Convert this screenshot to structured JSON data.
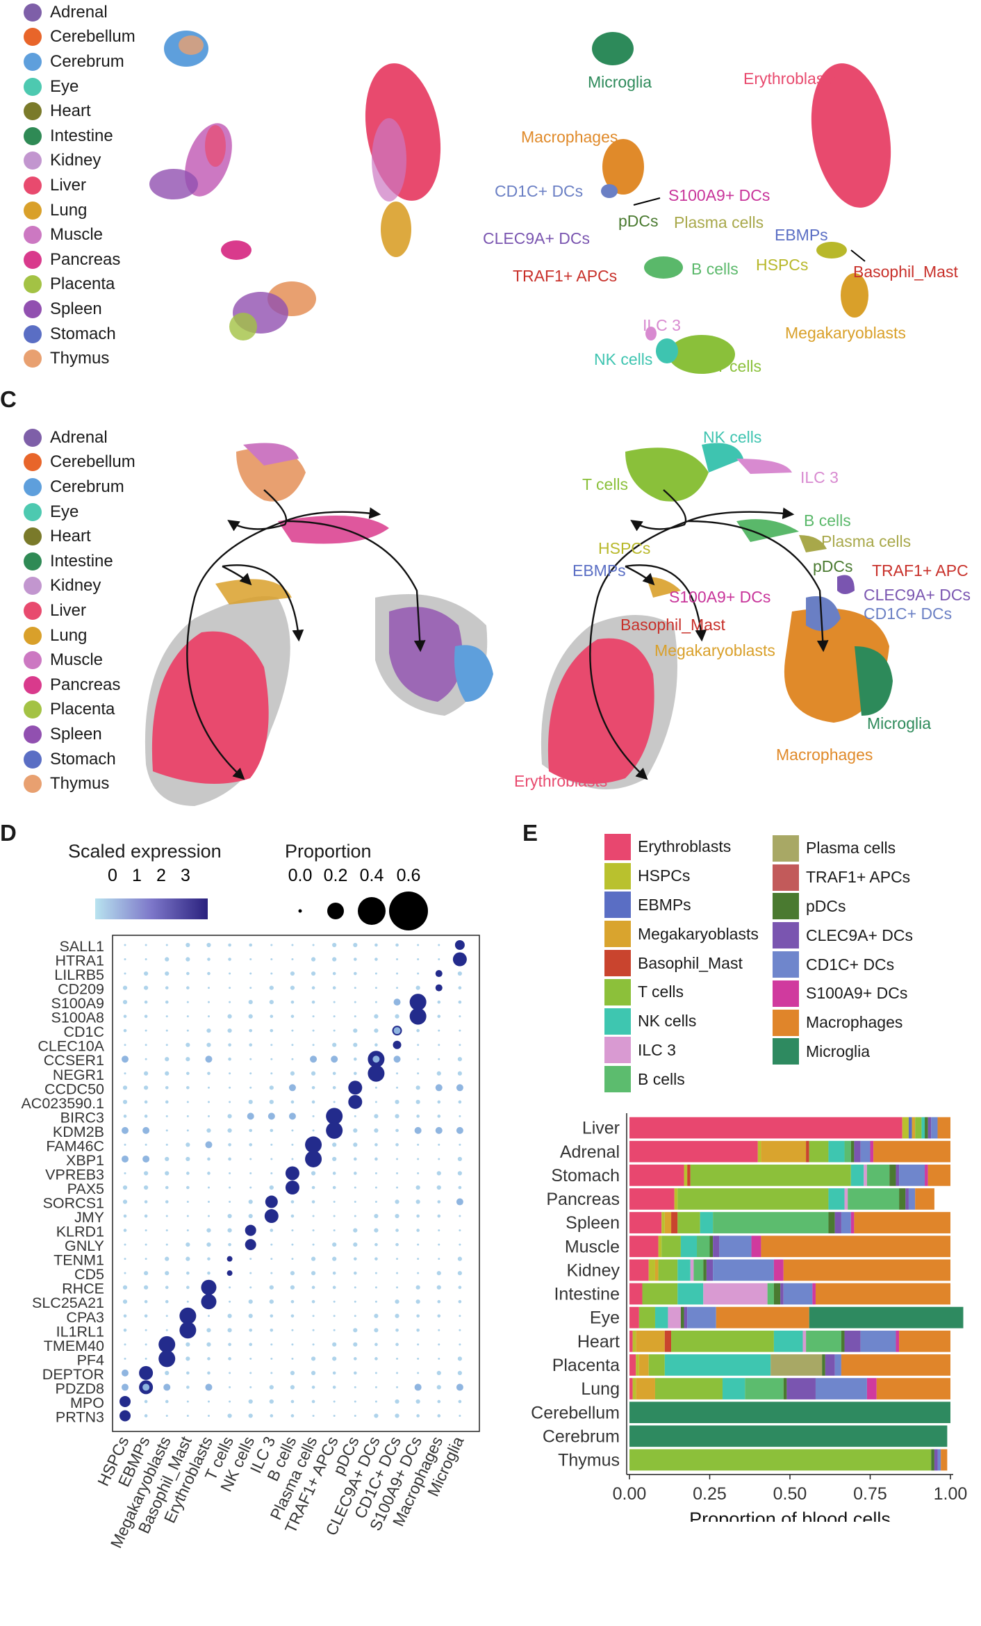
{
  "tissue_legend": [
    {
      "name": "Adrenal",
      "color": "#7e5fa8"
    },
    {
      "name": "Cerebellum",
      "color": "#e8652a"
    },
    {
      "name": "Cerebrum",
      "color": "#5e9fdc"
    },
    {
      "name": "Eye",
      "color": "#4dc9b0"
    },
    {
      "name": "Heart",
      "color": "#7a7a2a"
    },
    {
      "name": "Intestine",
      "color": "#2f8a55"
    },
    {
      "name": "Kidney",
      "color": "#c296cf"
    },
    {
      "name": "Liver",
      "color": "#e84a6e"
    },
    {
      "name": "Lung",
      "color": "#d9a02a"
    },
    {
      "name": "Muscle",
      "color": "#cc78c2"
    },
    {
      "name": "Pancreas",
      "color": "#d93a8c"
    },
    {
      "name": "Placenta",
      "color": "#a3c244"
    },
    {
      "name": "Spleen",
      "color": "#9150b0"
    },
    {
      "name": "Stomach",
      "color": "#5a6ec4"
    },
    {
      "name": "Thymus",
      "color": "#e8a070"
    }
  ],
  "panel_b_celltype_labels": [
    {
      "text": "Microglia",
      "color": "#2d8a5a"
    },
    {
      "text": "Erythroblasts",
      "color": "#e84a6e"
    },
    {
      "text": "Macrophages",
      "color": "#e08a2a"
    },
    {
      "text": "CD1C+ DCs",
      "color": "#6a7fc4"
    },
    {
      "text": "S100A9+ DCs",
      "color": "#c8349a"
    },
    {
      "text": "pDCs",
      "color": "#4a7a30"
    },
    {
      "text": "Plasma cells",
      "color": "#a8a84a"
    },
    {
      "text": "CLEC9A+ DCs",
      "color": "#7a55b0"
    },
    {
      "text": "EBMPs",
      "color": "#5a6ec4"
    },
    {
      "text": "TRAF1+ APCs",
      "color": "#c8302a"
    },
    {
      "text": "B cells",
      "color": "#5ab86a"
    },
    {
      "text": "HSPCs",
      "color": "#b8b82a"
    },
    {
      "text": "Basophil_Mast",
      "color": "#c8302a"
    },
    {
      "text": "ILC 3",
      "color": "#d88ad0"
    },
    {
      "text": "NK cells",
      "color": "#3ec4b0"
    },
    {
      "text": "T cells",
      "color": "#8ac03a"
    },
    {
      "text": "Megakaryoblasts",
      "color": "#d9a02a"
    }
  ],
  "panel_c": {
    "label": "C",
    "celltype_labels": [
      {
        "text": "NK cells",
        "color": "#3ec4b0"
      },
      {
        "text": "T cells",
        "color": "#8ac03a"
      },
      {
        "text": "ILC 3",
        "color": "#d88ad0"
      },
      {
        "text": "B cells",
        "color": "#5ab86a"
      },
      {
        "text": "Plasma cells",
        "color": "#a8a84a"
      },
      {
        "text": "HSPCs",
        "color": "#b8b82a"
      },
      {
        "text": "pDCs",
        "color": "#4a7a30"
      },
      {
        "text": "TRAF1+ APC",
        "color": "#c8302a"
      },
      {
        "text": "EBMPs",
        "color": "#5a6ec4"
      },
      {
        "text": "S100A9+ DCs",
        "color": "#c8349a"
      },
      {
        "text": "CLEC9A+ DCs",
        "color": "#7a55b0"
      },
      {
        "text": "CD1C+ DCs",
        "color": "#6a7fc4"
      },
      {
        "text": "Basophil_Mast",
        "color": "#c8302a"
      },
      {
        "text": "Megakaryoblasts",
        "color": "#d9a02a"
      },
      {
        "text": "Microglia",
        "color": "#2d8a5a"
      },
      {
        "text": "Macrophages",
        "color": "#e08a2a"
      },
      {
        "text": "Erythroblasts",
        "color": "#e84a6e"
      }
    ]
  },
  "panel_d": {
    "label": "D",
    "color_legend_title": "Scaled expression",
    "color_ticks": [
      "0",
      "1",
      "2",
      "3"
    ],
    "size_legend_title": "Proportion",
    "size_ticks": [
      "0.0",
      "0.2",
      "0.4",
      "0.6"
    ],
    "size_values": [
      0.0,
      0.2,
      0.4,
      0.6
    ],
    "genes": [
      "SALL1",
      "HTRA1",
      "LILRB5",
      "CD209",
      "S100A9",
      "S100A8",
      "CD1C",
      "CLEC10A",
      "CCSER1",
      "NEGR1",
      "CCDC50",
      "AC023590.1",
      "BIRC3",
      "KDM2B",
      "FAM46C",
      "XBP1",
      "VPREB3",
      "PAX5",
      "SORCS1",
      "JMY",
      "KLRD1",
      "GNLY",
      "TENM1",
      "CD5",
      "RHCE",
      "SLC25A21",
      "CPA3",
      "IL1RL1",
      "TMEM40",
      "PF4",
      "DEPTOR",
      "PDZD8",
      "MPO",
      "PRTN3"
    ],
    "cell_types": [
      "HSPCs",
      "EBMPs",
      "Megakaryoblasts",
      "Basophil_Mast",
      "Erythroblasts",
      "T cells",
      "NK cells",
      "ILC 3",
      "B cells",
      "Plasma cells",
      "TRAF1+ APCs",
      "pDCs",
      "CLEC9A+ DCs",
      "CD1C+ DCs",
      "S100A9+ DCs",
      "Macrophages",
      "Microglia"
    ]
  },
  "panel_e": {
    "label": "E",
    "legend_left": [
      {
        "name": "Erythroblasts",
        "color": "#e8476f"
      },
      {
        "name": "HSPCs",
        "color": "#b9c12e"
      },
      {
        "name": "EBMPs",
        "color": "#5a6ec4"
      },
      {
        "name": "Megakaryoblasts",
        "color": "#d9a42e"
      },
      {
        "name": "Basophil_Mast",
        "color": "#c9442e"
      },
      {
        "name": "T cells",
        "color": "#8cc03a"
      },
      {
        "name": "NK cells",
        "color": "#3ec6b0"
      },
      {
        "name": "ILC 3",
        "color": "#d99ad2"
      },
      {
        "name": "B cells",
        "color": "#5cbc6e"
      }
    ],
    "legend_right": [
      {
        "name": "Plasma cells",
        "color": "#a8a865"
      },
      {
        "name": "TRAF1+ APCs",
        "color": "#c25a5a"
      },
      {
        "name": "pDCs",
        "color": "#4a7a30"
      },
      {
        "name": "CLEC9A+ DCs",
        "color": "#7a55b0"
      },
      {
        "name": "CD1C+ DCs",
        "color": "#6f86cc"
      },
      {
        "name": "S100A9+ DCs",
        "color": "#d03a9e"
      },
      {
        "name": "Macrophages",
        "color": "#e0852a"
      },
      {
        "name": "Microglia",
        "color": "#2e8a60"
      }
    ]
  },
  "chart_data": {
    "type": "bar",
    "orientation": "horizontal-stacked",
    "xlabel": "Proportion of blood cells",
    "xlim": [
      0,
      1
    ],
    "xticks": [
      "0.00",
      "0.25",
      "0.50",
      "0.75",
      "1.00"
    ],
    "categories": [
      "Liver",
      "Adrenal",
      "Stomach",
      "Pancreas",
      "Spleen",
      "Muscle",
      "Kidney",
      "Intestine",
      "Eye",
      "Heart",
      "Placenta",
      "Lung",
      "Cerebellum",
      "Cerebrum",
      "Thymus"
    ],
    "series": [
      {
        "name": "Erythroblasts",
        "color": "#e8476f",
        "values": [
          0.85,
          0.4,
          0.17,
          0.14,
          0.1,
          0.09,
          0.06,
          0.04,
          0.03,
          0.01,
          0.02,
          0.01,
          0.0,
          0.0,
          0.0
        ]
      },
      {
        "name": "HSPCs",
        "color": "#b9c12e",
        "values": [
          0.02,
          0.01,
          0.01,
          0.01,
          0.01,
          0.01,
          0.02,
          0.0,
          0.0,
          0.01,
          0.01,
          0.01,
          0.0,
          0.0,
          0.0
        ]
      },
      {
        "name": "EBMPs",
        "color": "#5a6ec4",
        "values": [
          0.01,
          0.0,
          0.0,
          0.0,
          0.0,
          0.0,
          0.0,
          0.0,
          0.0,
          0.0,
          0.0,
          0.0,
          0.0,
          0.0,
          0.0
        ]
      },
      {
        "name": "Megakaryoblasts",
        "color": "#d9a42e",
        "values": [
          0.01,
          0.14,
          0.0,
          0.0,
          0.02,
          0.0,
          0.01,
          0.0,
          0.0,
          0.09,
          0.03,
          0.06,
          0.0,
          0.0,
          0.0
        ]
      },
      {
        "name": "Basophil_Mast",
        "color": "#c9442e",
        "values": [
          0.0,
          0.01,
          0.01,
          0.0,
          0.02,
          0.0,
          0.0,
          0.0,
          0.0,
          0.02,
          0.0,
          0.0,
          0.0,
          0.0,
          0.0
        ]
      },
      {
        "name": "T cells",
        "color": "#8cc03a",
        "values": [
          0.02,
          0.06,
          0.5,
          0.47,
          0.07,
          0.06,
          0.06,
          0.11,
          0.05,
          0.32,
          0.05,
          0.21,
          0.0,
          0.0,
          0.94
        ]
      },
      {
        "name": "NK cells",
        "color": "#3ec6b0",
        "values": [
          0.01,
          0.05,
          0.04,
          0.05,
          0.04,
          0.05,
          0.04,
          0.08,
          0.04,
          0.09,
          0.33,
          0.07,
          0.0,
          0.0,
          0.0
        ]
      },
      {
        "name": "ILC 3",
        "color": "#d99ad2",
        "values": [
          0.0,
          0.0,
          0.01,
          0.01,
          0.0,
          0.0,
          0.01,
          0.2,
          0.04,
          0.01,
          0.0,
          0.0,
          0.0,
          0.0,
          0.0
        ]
      },
      {
        "name": "B cells",
        "color": "#5cbc6e",
        "values": [
          0.0,
          0.02,
          0.07,
          0.16,
          0.36,
          0.04,
          0.03,
          0.02,
          0.0,
          0.11,
          0.0,
          0.12,
          0.0,
          0.0,
          0.0
        ]
      },
      {
        "name": "Plasma cells",
        "color": "#a8a865",
        "values": [
          0.0,
          0.0,
          0.0,
          0.0,
          0.0,
          0.0,
          0.0,
          0.0,
          0.0,
          0.0,
          0.16,
          0.0,
          0.0,
          0.0,
          0.0
        ]
      },
      {
        "name": "TRAF1+ APCs",
        "color": "#c25a5a",
        "values": [
          0.0,
          0.0,
          0.0,
          0.0,
          0.0,
          0.0,
          0.0,
          0.0,
          0.0,
          0.0,
          0.0,
          0.0,
          0.0,
          0.0,
          0.0
        ]
      },
      {
        "name": "pDCs",
        "color": "#4a7a30",
        "values": [
          0.01,
          0.01,
          0.02,
          0.02,
          0.02,
          0.01,
          0.01,
          0.02,
          0.01,
          0.01,
          0.01,
          0.01,
          0.0,
          0.0,
          0.01
        ]
      },
      {
        "name": "CLEC9A+ DCs",
        "color": "#7a55b0",
        "values": [
          0.01,
          0.02,
          0.01,
          0.01,
          0.02,
          0.02,
          0.02,
          0.01,
          0.01,
          0.05,
          0.03,
          0.09,
          0.0,
          0.0,
          0.01
        ]
      },
      {
        "name": "CD1C+ DCs",
        "color": "#6f86cc",
        "values": [
          0.02,
          0.03,
          0.08,
          0.02,
          0.03,
          0.1,
          0.19,
          0.09,
          0.09,
          0.11,
          0.02,
          0.16,
          0.0,
          0.0,
          0.01
        ]
      },
      {
        "name": "S100A9+ DCs",
        "color": "#d03a9e",
        "values": [
          0.0,
          0.01,
          0.01,
          0.0,
          0.01,
          0.03,
          0.03,
          0.01,
          0.0,
          0.01,
          0.0,
          0.03,
          0.0,
          0.0,
          0.0
        ]
      },
      {
        "name": "Macrophages",
        "color": "#e0852a",
        "values": [
          0.04,
          0.24,
          0.07,
          0.06,
          0.3,
          0.59,
          0.52,
          0.42,
          0.29,
          0.16,
          0.34,
          0.23,
          0.0,
          0.0,
          0.02
        ]
      },
      {
        "name": "Microglia",
        "color": "#2e8a60",
        "values": [
          0.0,
          0.0,
          0.0,
          0.0,
          0.0,
          0.0,
          0.0,
          0.0,
          0.48,
          0.0,
          0.0,
          0.0,
          1.0,
          0.99,
          0.0
        ]
      }
    ]
  }
}
